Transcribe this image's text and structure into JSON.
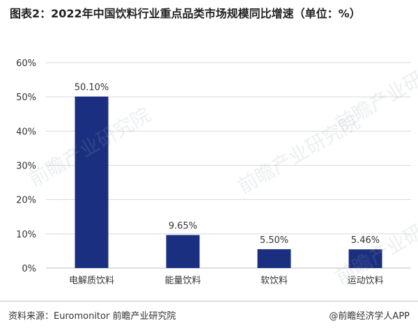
{
  "title": "图表2：2022年中国饮料行业重点品类市场规模同比增速（单位：%）",
  "source_left": "资料来源：Euromonitor 前瞻产业研究院",
  "source_right": "@前瞻经济学人APP",
  "watermark": "前瞻产业研究院",
  "colors": {
    "bar": "#1b2f80",
    "grid": "#d9d9d9",
    "axis": "#bfbfbf",
    "text": "#333333"
  },
  "chart_data": {
    "type": "bar",
    "title": "图表2：2022年中国饮料行业重点品类市场规模同比增速（单位：%）",
    "categories": [
      "电解质饮料",
      "能量饮料",
      "软饮料",
      "运动饮料"
    ],
    "values": [
      50.1,
      9.65,
      5.5,
      5.46
    ],
    "data_labels": [
      "50.10%",
      "9.65%",
      "5.50%",
      "5.46%"
    ],
    "ylim": [
      0,
      60
    ],
    "yticks": [
      0,
      10,
      20,
      30,
      40,
      50,
      60
    ],
    "ytick_labels": [
      "0%",
      "10%",
      "20%",
      "30%",
      "40%",
      "50%",
      "60%"
    ],
    "grid": true,
    "legend": "none"
  }
}
